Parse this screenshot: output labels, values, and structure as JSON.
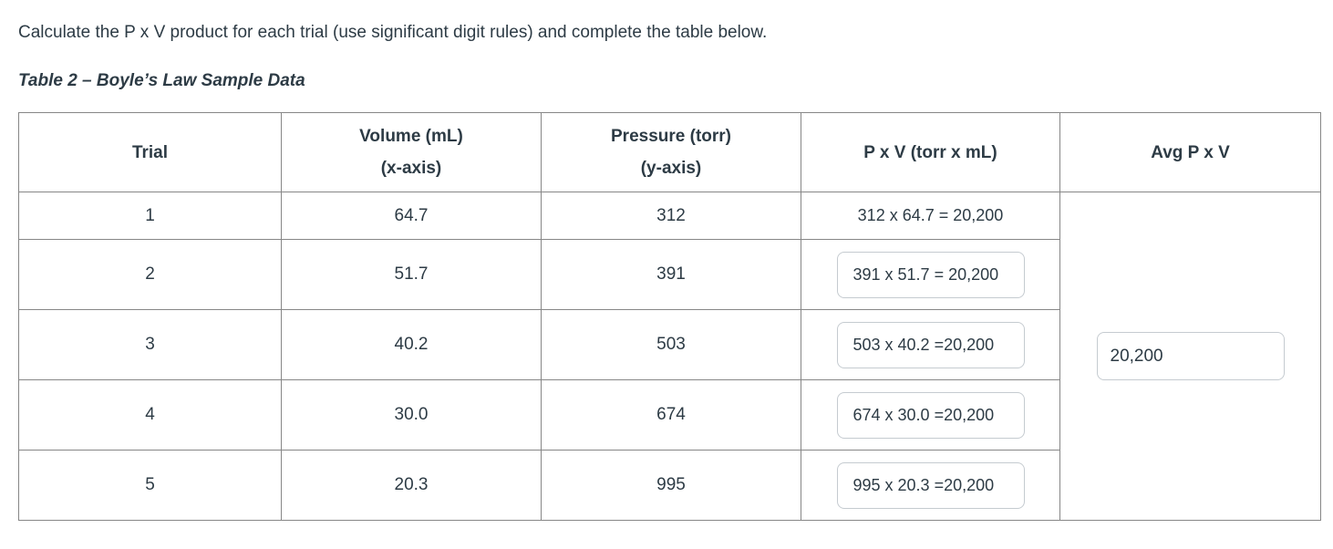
{
  "content": {
    "instruction": "Calculate the P x V product for each trial (use significant digit rules) and complete the table below.",
    "caption": "Table 2 – Boyle’s Law Sample Data"
  },
  "table": {
    "headers": {
      "trial": "Trial",
      "volume_line1": "Volume (mL)",
      "volume_line2": "(x-axis)",
      "pressure_line1": "Pressure (torr)",
      "pressure_line2": "(y-axis)",
      "pxv": "P x V (torr x mL)",
      "avg": "Avg P x V"
    },
    "rows": [
      {
        "trial": "1",
        "volume": "64.7",
        "pressure": "312",
        "pxv": "312 x 64.7 = 20,200"
      },
      {
        "trial": "2",
        "volume": "51.7",
        "pressure": "391",
        "pxv": "391 x 51.7 = 20,200"
      },
      {
        "trial": "3",
        "volume": "40.2",
        "pressure": "503",
        "pxv": "503 x 40.2 =20,200"
      },
      {
        "trial": "4",
        "volume": "30.0",
        "pressure": "674",
        "pxv": "674 x 30.0 =20,200"
      },
      {
        "trial": "5",
        "volume": "20.3",
        "pressure": "995",
        "pxv": "995 x 20.3 =20,200"
      }
    ],
    "avg_value": "20,200"
  },
  "colors": {
    "text": "#2D3B45",
    "table_border": "#878787",
    "input_border": "#c5cbd0",
    "background": "#ffffff"
  }
}
